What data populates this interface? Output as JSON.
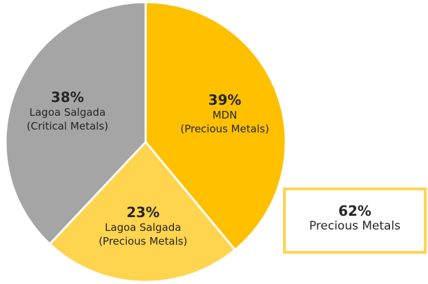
{
  "chart_data": {
    "type": "pie",
    "categories": [
      "MDN\n(Precious Metals)",
      "Lagoa Salgada\n(Precious Metals)",
      "Lagoa Salgada\n(Critical Metals)"
    ],
    "values": [
      39,
      23,
      38
    ],
    "value_labels": [
      "39%",
      "23%",
      "38%"
    ],
    "colors": [
      "#FFC000",
      "#FFD44F",
      "#A5A5A5"
    ],
    "annotation": [
      "62%",
      "Precious Metals"
    ]
  }
}
